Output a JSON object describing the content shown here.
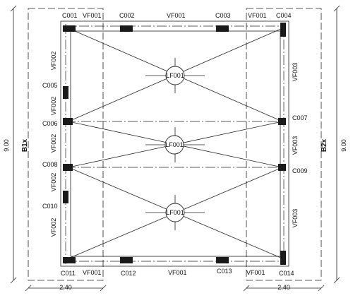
{
  "columns": {
    "c001": "C001",
    "c002": "C002",
    "c003": "C003",
    "c004": "C004",
    "c005": "C005",
    "c006": "C006",
    "c007": "C007",
    "c008": "C008",
    "c009": "C009",
    "c010": "C010",
    "c011": "C011",
    "c012": "C012",
    "c013": "C013",
    "c014": "C014"
  },
  "beams": {
    "vf001": "VF001",
    "vf002": "VF002",
    "vf003": "VF003"
  },
  "slabs": {
    "lf001": "LF001"
  },
  "bands": {
    "left": "B1x",
    "right": "B2x"
  },
  "dimensions": {
    "height_left": "9.00",
    "height_right": "9.00",
    "width_bottom_left": "2.40",
    "width_bottom_right": "2.40"
  },
  "colors": {
    "line": "#222222",
    "column_fill": "#1a1a1a",
    "background": "#ffffff"
  }
}
